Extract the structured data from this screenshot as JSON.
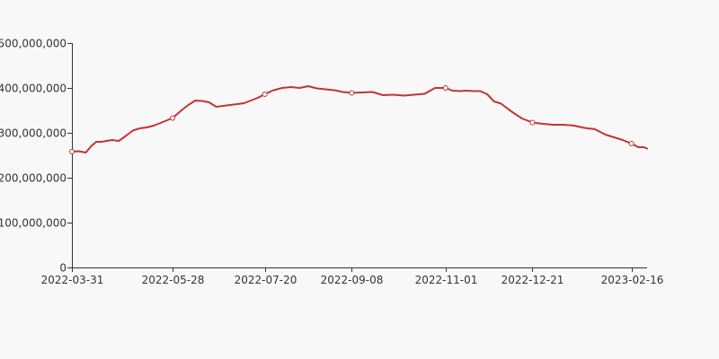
{
  "chart_data": {
    "type": "line",
    "title": "",
    "xlabel": "",
    "ylabel": "",
    "grid": false,
    "legend": "none",
    "x_axis": {
      "type": "date",
      "range": [
        "2022-03-31",
        "2023-02-25"
      ],
      "ticks": [
        "2022-03-31",
        "2022-05-28",
        "2022-07-20",
        "2022-09-08",
        "2022-11-01",
        "2022-12-21",
        "2023-02-16"
      ]
    },
    "y_axis": {
      "range": [
        0,
        500000000
      ],
      "ticks": [
        0,
        100000000,
        200000000,
        300000000,
        400000000,
        500000000
      ],
      "tick_labels": [
        "0",
        "100,000,000",
        "200,000,000",
        "300,000,000",
        "400,000,000",
        "500,000,000"
      ]
    },
    "colors": {
      "series": "#c23531",
      "axis": "#333333",
      "background": "#f8f8f8"
    },
    "series": [
      {
        "x": [
          "2022-03-31",
          "2022-04-04",
          "2022-04-08",
          "2022-04-11",
          "2022-04-14",
          "2022-04-17",
          "2022-04-20",
          "2022-04-23",
          "2022-04-27",
          "2022-05-01",
          "2022-05-05",
          "2022-05-09",
          "2022-05-13",
          "2022-05-17",
          "2022-05-21",
          "2022-05-28",
          "2022-06-02",
          "2022-06-06",
          "2022-06-10",
          "2022-06-14",
          "2022-06-18",
          "2022-06-22",
          "2022-06-26",
          "2022-06-30",
          "2022-07-04",
          "2022-07-08",
          "2022-07-12",
          "2022-07-16",
          "2022-07-20",
          "2022-07-25",
          "2022-07-30",
          "2022-08-04",
          "2022-08-09",
          "2022-08-14",
          "2022-08-19",
          "2022-08-24",
          "2022-08-29",
          "2022-09-03",
          "2022-09-08",
          "2022-09-14",
          "2022-09-20",
          "2022-09-26",
          "2022-10-02",
          "2022-10-08",
          "2022-10-14",
          "2022-10-20",
          "2022-10-26",
          "2022-10-29",
          "2022-11-01",
          "2022-11-05",
          "2022-11-09",
          "2022-11-13",
          "2022-11-17",
          "2022-11-21",
          "2022-11-25",
          "2022-11-29",
          "2022-12-03",
          "2022-12-07",
          "2022-12-11",
          "2022-12-15",
          "2022-12-21",
          "2022-12-27",
          "2023-01-02",
          "2023-01-08",
          "2023-01-14",
          "2023-01-20",
          "2023-01-26",
          "2023-02-01",
          "2023-02-06",
          "2023-02-11",
          "2023-02-16",
          "2023-02-20",
          "2023-02-23",
          "2023-02-25"
        ],
        "values": [
          258000000,
          259000000,
          256000000,
          270000000,
          280000000,
          280000000,
          282000000,
          284000000,
          282000000,
          293000000,
          305000000,
          310000000,
          312000000,
          316000000,
          322000000,
          333000000,
          350000000,
          362000000,
          372000000,
          371000000,
          368000000,
          358000000,
          360000000,
          362000000,
          364000000,
          366000000,
          372000000,
          378000000,
          386000000,
          395000000,
          400000000,
          402000000,
          400000000,
          404000000,
          399000000,
          397000000,
          395000000,
          391000000,
          389000000,
          390000000,
          391000000,
          384000000,
          385000000,
          383000000,
          385000000,
          387000000,
          400000000,
          400000000,
          400000000,
          394000000,
          393000000,
          394000000,
          393000000,
          393000000,
          386000000,
          370000000,
          365000000,
          353000000,
          342000000,
          332000000,
          323000000,
          320000000,
          318000000,
          318000000,
          316000000,
          311000000,
          308000000,
          296000000,
          290000000,
          284000000,
          276000000,
          268000000,
          268000000,
          265000000
        ],
        "markers": [
          "2022-03-31",
          "2022-05-28",
          "2022-07-20",
          "2022-09-08",
          "2022-11-01",
          "2022-12-21",
          "2023-02-16"
        ]
      }
    ]
  }
}
